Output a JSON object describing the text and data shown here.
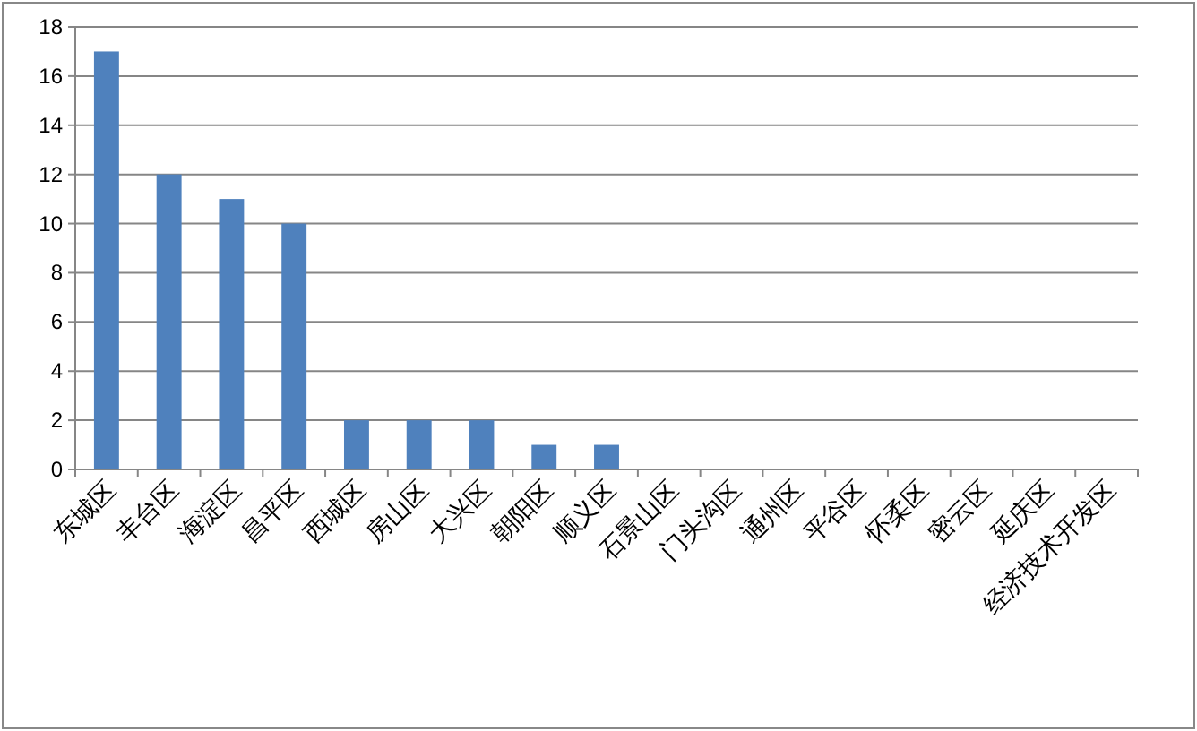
{
  "chart_data": {
    "type": "bar",
    "categories": [
      "东城区",
      "丰台区",
      "海淀区",
      "昌平区",
      "西城区",
      "房山区",
      "大兴区",
      "朝阳区",
      "顺义区",
      "石景山区",
      "门头沟区",
      "通州区",
      "平谷区",
      "怀柔区",
      "密云区",
      "延庆区",
      "经济技术开发区"
    ],
    "values": [
      17,
      12,
      11,
      10,
      2,
      2,
      2,
      1,
      1,
      0,
      0,
      0,
      0,
      0,
      0,
      0,
      0
    ],
    "color": "#4f81bd",
    "ylim": [
      0,
      18
    ],
    "yticks": [
      0,
      2,
      4,
      6,
      8,
      10,
      12,
      14,
      16,
      18
    ],
    "grid": "y"
  }
}
